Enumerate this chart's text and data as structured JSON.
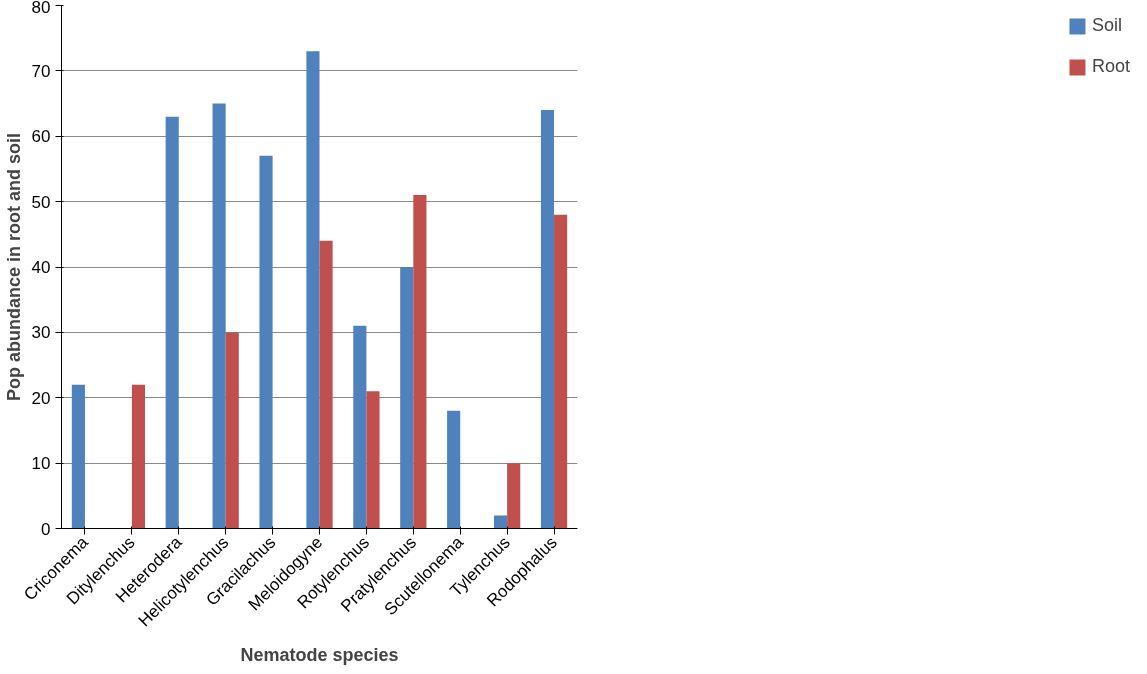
{
  "chart_data": {
    "type": "bar",
    "xlabel": "Nematode species",
    "ylabel": "Pop abundance in root and soil",
    "categories": [
      "Criconema",
      "Ditylenchus",
      "Heterodera",
      "Helicotylenchus",
      "Gracilachus",
      "Meloidogyne",
      "Rotylenchus",
      "Pratylenchus",
      "Scutellonema",
      "Tylenchus",
      "Rodophalus"
    ],
    "series": [
      {
        "name": "Soil",
        "color": "#4f81bd",
        "values": [
          22,
          0,
          63,
          65,
          57,
          73,
          31,
          40,
          18,
          2,
          64
        ]
      },
      {
        "name": "Root",
        "color": "#c0504d",
        "values": [
          0,
          22,
          0,
          30,
          0,
          44,
          21,
          51,
          0,
          10,
          48
        ]
      }
    ],
    "ylim": [
      0,
      80
    ],
    "yticks": [
      0,
      10,
      20,
      30,
      40,
      50,
      60,
      70,
      80
    ],
    "grid": "y",
    "legend": "right"
  }
}
